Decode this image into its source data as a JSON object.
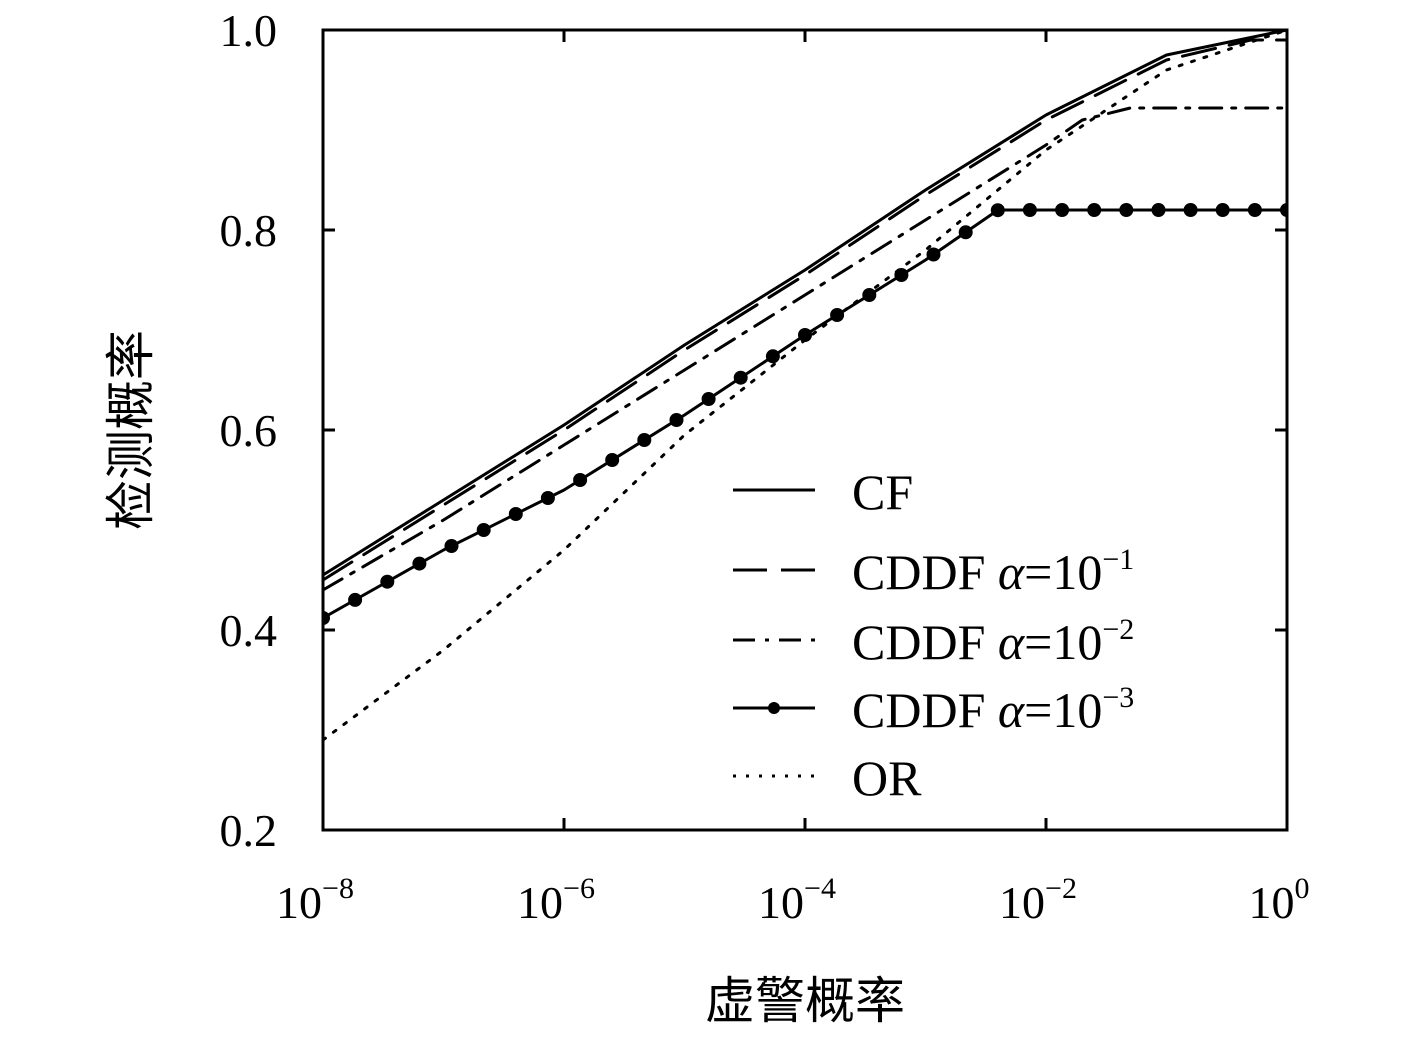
{
  "chart_data": {
    "type": "line",
    "xlabel": "虚警概率",
    "ylabel": "检测概率",
    "xscale": "log",
    "xlim": [
      1e-08,
      1
    ],
    "ylim": [
      0.2,
      1.0
    ],
    "x_ticks": [
      {
        "base": "10",
        "exp": "−8"
      },
      {
        "base": "10",
        "exp": "−6"
      },
      {
        "base": "10",
        "exp": "−4"
      },
      {
        "base": "10",
        "exp": "−2"
      },
      {
        "base": "10",
        "exp": "0"
      }
    ],
    "y_ticks": [
      "0.2",
      "0.4",
      "0.6",
      "0.8",
      "1.0"
    ],
    "grid": false,
    "legend_position": "bottom-right",
    "series": [
      {
        "name": "CF",
        "style": "solid",
        "x": [
          1e-08,
          1e-07,
          1e-06,
          1e-05,
          0.0001,
          0.001,
          0.01,
          0.1,
          1
        ],
        "y": [
          0.455,
          0.53,
          0.605,
          0.685,
          0.76,
          0.84,
          0.915,
          0.975,
          1.0
        ]
      },
      {
        "name": "CDDF α=10⁻¹",
        "label": "CDDF ",
        "alpha": "α",
        "eq": "=10",
        "exp": "−1",
        "style": "long-dash",
        "x": [
          1e-08,
          1e-07,
          1e-06,
          1e-05,
          0.0001,
          0.001,
          0.01,
          0.1,
          0.5,
          1
        ],
        "y": [
          0.45,
          0.525,
          0.6,
          0.68,
          0.755,
          0.835,
          0.91,
          0.97,
          0.99,
          0.99
        ]
      },
      {
        "name": "CDDF α=10⁻²",
        "label": "CDDF ",
        "alpha": "α",
        "eq": "=10",
        "exp": "−2",
        "style": "dash-dot",
        "x": [
          1e-08,
          1e-07,
          1e-06,
          1e-05,
          0.0001,
          0.001,
          0.01,
          0.02,
          0.05,
          1
        ],
        "y": [
          0.44,
          0.51,
          0.585,
          0.66,
          0.735,
          0.81,
          0.885,
          0.91,
          0.922,
          0.922
        ]
      },
      {
        "name": "CDDF α=10⁻³",
        "label": "CDDF ",
        "alpha": "α",
        "eq": "=10",
        "exp": "−3",
        "style": "solid-dots",
        "x": [
          1e-08,
          1e-07,
          1e-06,
          1e-05,
          0.0001,
          0.001,
          0.004,
          1
        ],
        "y": [
          0.412,
          0.48,
          0.54,
          0.615,
          0.695,
          0.77,
          0.82,
          0.82
        ]
      },
      {
        "name": "OR",
        "style": "dotted",
        "x": [
          1e-08,
          1e-07,
          1e-06,
          1e-05,
          0.0001,
          0.001,
          0.01,
          0.1,
          1
        ],
        "y": [
          0.29,
          0.38,
          0.48,
          0.595,
          0.69,
          0.78,
          0.88,
          0.96,
          1.0
        ]
      }
    ]
  }
}
